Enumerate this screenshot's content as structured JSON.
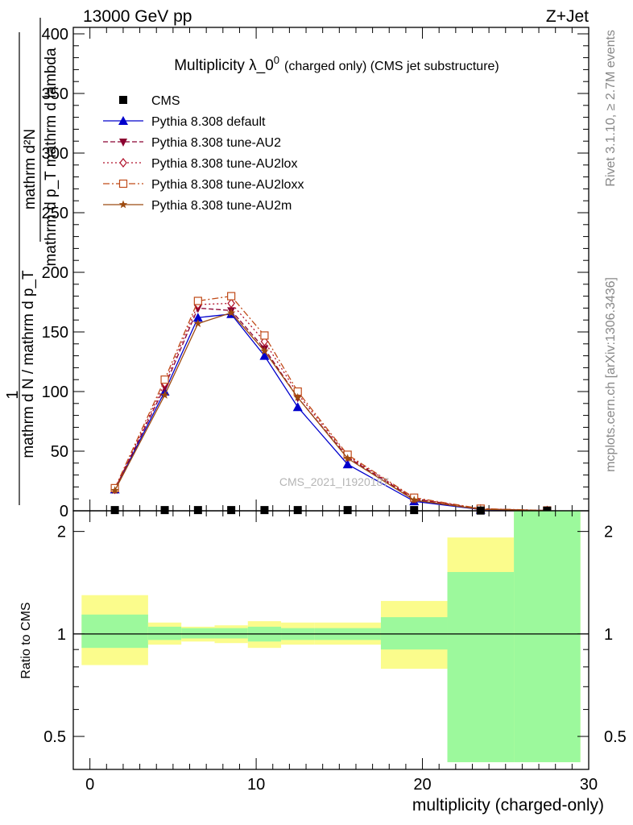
{
  "header": {
    "left": "13000 GeV pp",
    "right": "Z+Jet"
  },
  "side_labels": {
    "rivet": "Rivet 3.1.10, ≥ 2.7M events",
    "mcplots": "mcplots.cern.ch [arXiv:1306.3436]"
  },
  "watermark": "CMS_2021_I1920187",
  "chart_data": [
    {
      "type": "line",
      "title": "Multiplicity λ_0⁰ (charged only) (CMS jet substructure)",
      "title_main": "Multiplicity λ_0",
      "title_sup": "0",
      "title_tail": "(charged only) (CMS jet substructure)",
      "ylabel_top": "mathrm dN",
      "ylabel_bottom": "mathrm d p_T mathrm d lambda",
      "ylabel_top2": "1",
      "ylabel_bottom2": "mathrm d N / mathrm d p_T",
      "ylabel_numerator_full": "mathrm d²N",
      "xlim": [
        -1,
        30
      ],
      "ylim": [
        0,
        400
      ],
      "yticks": [
        "0",
        "50",
        "100",
        "150",
        "200",
        "250",
        "300",
        "350",
        "400"
      ],
      "legend_position": "top-left",
      "series": [
        {
          "name": "CMS",
          "color": "#000000",
          "marker": "square",
          "style": "none",
          "x": [
            1.5,
            4.5,
            6.5,
            8.5,
            10.5,
            12.5,
            15.5,
            19.5,
            23.5,
            27.5
          ],
          "y": [
            0.6,
            0.6,
            0.6,
            0.6,
            0.6,
            0.6,
            0.6,
            0.6,
            0.2,
            0.1
          ]
        },
        {
          "name": "Pythia 8.308 default",
          "color": "#0000cc",
          "marker": "triangle-up",
          "style": "solid",
          "x": [
            1.5,
            4.5,
            6.5,
            8.5,
            10.5,
            12.5,
            15.5,
            19.5,
            23.5,
            27.5
          ],
          "y": [
            18,
            100,
            162,
            165,
            130,
            87,
            39,
            8,
            1,
            0.2
          ]
        },
        {
          "name": "Pythia 8.308 tune-AU2",
          "color": "#8b0030",
          "marker": "triangle-down",
          "style": "dashed",
          "x": [
            1.5,
            4.5,
            6.5,
            8.5,
            10.5,
            12.5,
            15.5,
            19.5,
            23.5,
            27.5
          ],
          "y": [
            18,
            104,
            170,
            168,
            136,
            95,
            45,
            10,
            1.5,
            0.3
          ]
        },
        {
          "name": "Pythia 8.308 tune-AU2lox",
          "color": "#b0102a",
          "marker": "diamond-open",
          "style": "dotted",
          "x": [
            1.5,
            4.5,
            6.5,
            8.5,
            10.5,
            12.5,
            15.5,
            19.5,
            23.5,
            27.5
          ],
          "y": [
            18,
            107,
            173,
            174,
            142,
            98,
            46,
            10.5,
            1.6,
            0.3
          ]
        },
        {
          "name": "Pythia 8.308 tune-AU2loxx",
          "color": "#c04a18",
          "marker": "square-open",
          "style": "dashdot",
          "x": [
            1.5,
            4.5,
            6.5,
            8.5,
            10.5,
            12.5,
            15.5,
            19.5,
            23.5,
            27.5
          ],
          "y": [
            19,
            110,
            176,
            180,
            147,
            100,
            47,
            11,
            1.8,
            0.3
          ]
        },
        {
          "name": "Pythia 8.308 tune-AU2m",
          "color": "#9c4a10",
          "marker": "star",
          "style": "solid",
          "x": [
            1.5,
            4.5,
            6.5,
            8.5,
            10.5,
            12.5,
            15.5,
            19.5,
            23.5,
            27.5
          ],
          "y": [
            17,
            97,
            157,
            166,
            134,
            95,
            44,
            9,
            1.2,
            0.2
          ]
        }
      ]
    },
    {
      "type": "area",
      "ylabel": "Ratio to CMS",
      "xlabel": "multiplicity (charged-only)",
      "xlim": [
        -1,
        30
      ],
      "xticks": [
        "0",
        "10",
        "20",
        "30"
      ],
      "ylim": [
        0.4,
        2.3
      ],
      "yscale": "log",
      "yticks": [
        "0.5",
        "1",
        "2"
      ],
      "reference": 1,
      "bins": [
        {
          "lo": -0.5,
          "hi": 3.5,
          "stat": [
            0.91,
            1.14
          ],
          "tot": [
            0.81,
            1.3
          ]
        },
        {
          "lo": 3.5,
          "hi": 5.5,
          "stat": [
            0.96,
            1.05
          ],
          "tot": [
            0.93,
            1.08
          ]
        },
        {
          "lo": 5.5,
          "hi": 7.5,
          "stat": [
            0.97,
            1.04
          ],
          "tot": [
            0.95,
            1.05
          ]
        },
        {
          "lo": 7.5,
          "hi": 9.5,
          "stat": [
            0.97,
            1.04
          ],
          "tot": [
            0.94,
            1.06
          ]
        },
        {
          "lo": 9.5,
          "hi": 11.5,
          "stat": [
            0.95,
            1.05
          ],
          "tot": [
            0.91,
            1.09
          ]
        },
        {
          "lo": 11.5,
          "hi": 13.5,
          "stat": [
            0.96,
            1.04
          ],
          "tot": [
            0.93,
            1.08
          ]
        },
        {
          "lo": 13.5,
          "hi": 17.5,
          "stat": [
            0.96,
            1.04
          ],
          "tot": [
            0.93,
            1.08
          ]
        },
        {
          "lo": 17.5,
          "hi": 21.5,
          "stat": [
            0.9,
            1.12
          ],
          "tot": [
            0.79,
            1.25
          ]
        },
        {
          "lo": 21.5,
          "hi": 25.5,
          "stat": [
            0.42,
            1.52
          ],
          "tot": [
            0.42,
            1.92
          ]
        },
        {
          "lo": 25.5,
          "hi": 29.5,
          "stat": [
            0.42,
            2.3
          ],
          "tot": [
            0.42,
            2.3
          ]
        }
      ],
      "stat_color": "#9cf99c",
      "tot_color": "#fbfc8c"
    }
  ]
}
